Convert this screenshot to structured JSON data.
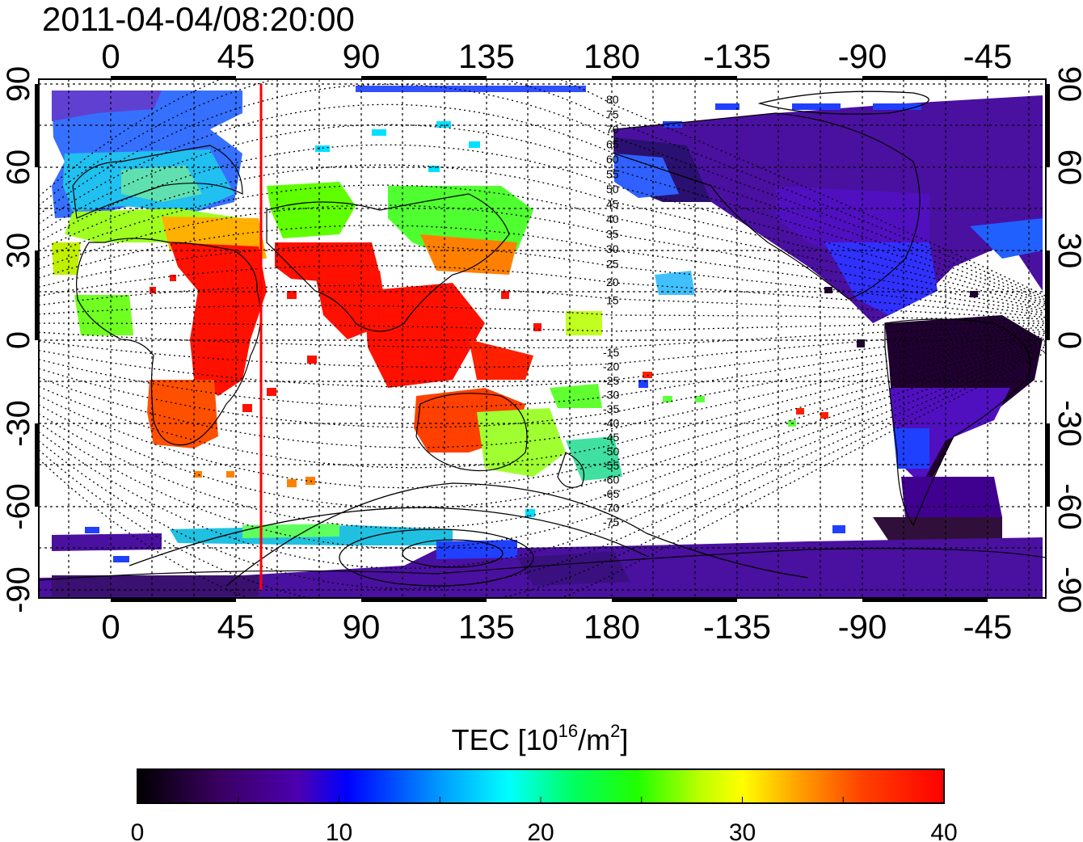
{
  "timestamp": "2011-04-04/08:20:00",
  "map": {
    "lon_top_labels": [
      "0",
      "45",
      "90",
      "135",
      "180",
      "-135",
      "-90",
      "-45"
    ],
    "lon_bottom_labels": [
      "0",
      "45",
      "90",
      "135",
      "180",
      "-135",
      "-90",
      "-45"
    ],
    "lat_labels": [
      "90",
      "60",
      "30",
      "0",
      "-30",
      "-60",
      "-90"
    ],
    "magnetic_lat_north": [
      "80",
      "75",
      "70",
      "65",
      "60",
      "55",
      "50",
      "45",
      "40",
      "35",
      "30",
      "25",
      "20",
      "15"
    ],
    "magnetic_lat_south": [
      "-15",
      "-20",
      "-25",
      "-30",
      "-35",
      "-40",
      "-45",
      "-50",
      "-55",
      "-60",
      "-65",
      "-70",
      "-75"
    ],
    "marker_line_lon": 55,
    "marker_color": "#ff0000"
  },
  "colorbar": {
    "title_main": "TEC  [10",
    "title_sup": "16",
    "title_unit": "/m",
    "title_sup2": "2",
    "title_end": "]",
    "ticks": [
      "0",
      "10",
      "20",
      "30",
      "40"
    ],
    "colors": [
      "#000000",
      "#3a0060",
      "#4b00b0",
      "#0000ff",
      "#00a0ff",
      "#00ffff",
      "#00ff60",
      "#20ff00",
      "#c0ff00",
      "#ffff00",
      "#ffa000",
      "#ff4000",
      "#ff0000"
    ]
  }
}
